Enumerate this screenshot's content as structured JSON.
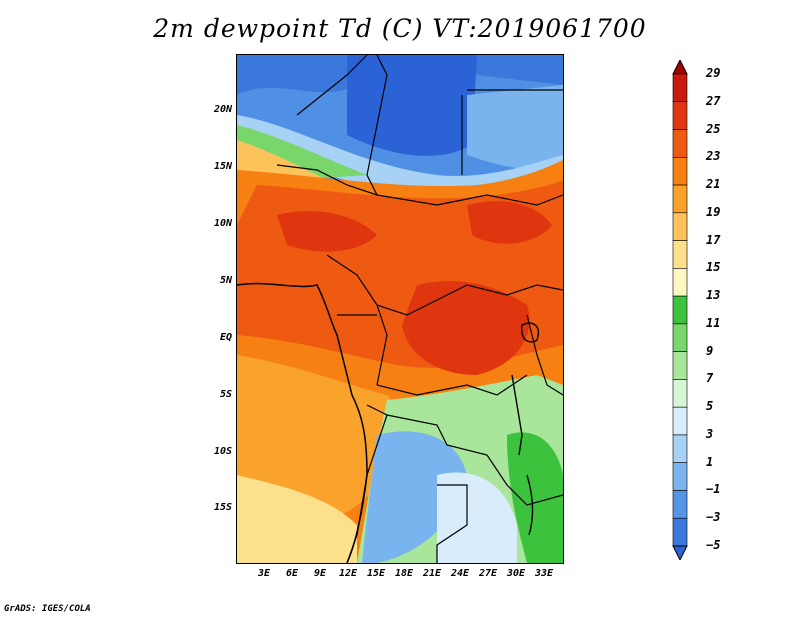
{
  "title": "2m dewpoint Td (C) VT:2019061700",
  "credit": "GrADS: IGES/COLA",
  "latitude_labels": [
    "20N",
    "15N",
    "10N",
    "5N",
    "EQ",
    "5S",
    "10S",
    "15S"
  ],
  "longitude_labels": [
    "3E",
    "6E",
    "9E",
    "12E",
    "15E",
    "18E",
    "21E",
    "24E",
    "27E",
    "30E",
    "33E"
  ],
  "colorbar": {
    "labels": [
      "29",
      "27",
      "25",
      "23",
      "21",
      "19",
      "17",
      "15",
      "13",
      "11",
      "9",
      "7",
      "5",
      "3",
      "1",
      "−1",
      "−3",
      "−5"
    ],
    "colors": [
      "#a50000",
      "#c81b0d",
      "#e0360f",
      "#ef5a12",
      "#f78012",
      "#f9a32c",
      "#fbc35a",
      "#fde08c",
      "#fbf6c2",
      "#3cc23c",
      "#78d66a",
      "#a9e59a",
      "#d6f6d6",
      "#d8ecfb",
      "#a7d1f5",
      "#7ab4ee",
      "#5696e6",
      "#3a78dc",
      "#2b62d6"
    ]
  }
}
